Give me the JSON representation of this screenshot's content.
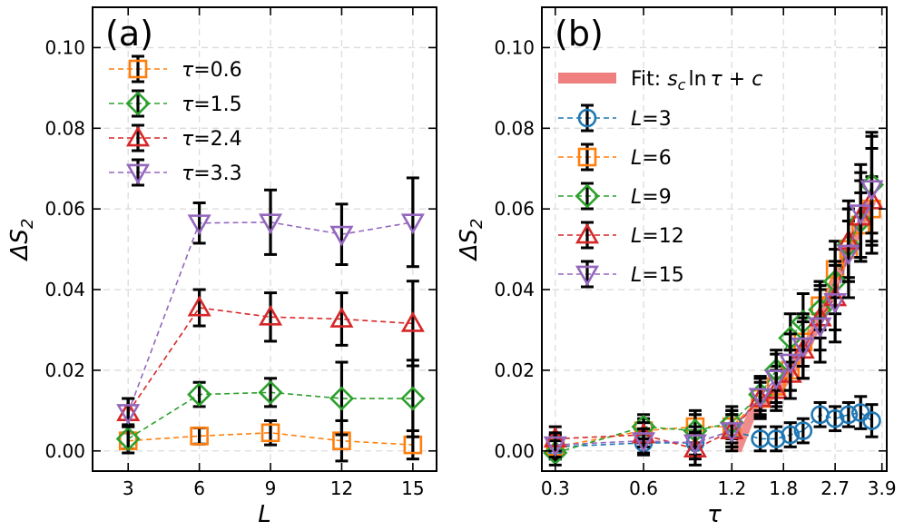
{
  "chart_data": [
    {
      "type": "line",
      "panel_label": "(a)",
      "xlabel": "L",
      "ylabel": "ΔS",
      "ylabel_sub": "2",
      "xlim": [
        1.5,
        16.0
      ],
      "ylim": [
        -0.005,
        0.11
      ],
      "xticks": [
        3,
        6,
        9,
        12,
        15
      ],
      "xtick_labels": [
        "3",
        "6",
        "9",
        "12",
        "15"
      ],
      "yticks": [
        0.0,
        0.02,
        0.04,
        0.06,
        0.08,
        0.1
      ],
      "ytick_labels": [
        "0.00",
        "0.02",
        "0.04",
        "0.06",
        "0.08",
        "0.10"
      ],
      "grid": true,
      "legend_position": "upper-left",
      "series": [
        {
          "name": "τ=0.6",
          "prefix": "τ",
          "value_label": "=0.6",
          "color": "#ff7f0e",
          "marker": "square",
          "x": [
            3,
            6,
            9,
            12,
            15
          ],
          "y": [
            0.0025,
            0.0037,
            0.0045,
            0.0025,
            0.0015
          ],
          "err": [
            0.002,
            0.002,
            0.003,
            0.005,
            0.0035
          ]
        },
        {
          "name": "τ=1.5",
          "prefix": "τ",
          "value_label": "=1.5",
          "color": "#2ca02c",
          "marker": "diamond",
          "x": [
            3,
            6,
            9,
            12,
            15
          ],
          "y": [
            0.003,
            0.014,
            0.0145,
            0.013,
            0.013
          ],
          "err": [
            0.0035,
            0.003,
            0.0035,
            0.009,
            0.0095
          ]
        },
        {
          "name": "τ=2.4",
          "prefix": "τ",
          "value_label": "=2.4",
          "color": "#d62728",
          "marker": "triangle-up",
          "x": [
            3,
            6,
            9,
            12,
            15
          ],
          "y": [
            0.0095,
            0.0355,
            0.0332,
            0.0327,
            0.0316
          ],
          "err": [
            0.0035,
            0.0045,
            0.006,
            0.0065,
            0.0105
          ]
        },
        {
          "name": "τ=3.3",
          "prefix": "τ",
          "value_label": "=3.3",
          "color": "#9467bd",
          "marker": "triangle-down",
          "x": [
            3,
            6,
            9,
            12,
            15
          ],
          "y": [
            0.0095,
            0.0565,
            0.0567,
            0.0537,
            0.0567
          ],
          "err": [
            0.0035,
            0.005,
            0.008,
            0.0075,
            0.011
          ]
        }
      ]
    },
    {
      "type": "line",
      "panel_label": "(b)",
      "xlabel": "τ",
      "ylabel": "ΔS",
      "ylabel_sub": "2",
      "xlim": [
        0.27,
        4.05
      ],
      "ylim": [
        -0.005,
        0.11
      ],
      "xscale": "log",
      "xticks": [
        0.3,
        0.6,
        1.2,
        1.8,
        2.7,
        3.9
      ],
      "xtick_labels": [
        "0.3",
        "0.6",
        "1.2",
        "1.8",
        "2.7",
        "3.9"
      ],
      "yticks": [
        0.0,
        0.02,
        0.04,
        0.06,
        0.08,
        0.1
      ],
      "ytick_labels": [
        "0.00",
        "0.02",
        "0.04",
        "0.06",
        "0.08",
        "0.10"
      ],
      "grid": true,
      "legend_position": "upper-left",
      "fit": {
        "label_prefix": "Fit: ",
        "label_formula": "s",
        "label_sub": "c",
        "label_rest": "ln",
        "label_tau": "τ",
        "label_tail": " + ",
        "label_c": "c",
        "color": "#f08080",
        "x": [
          1.25,
          1.4,
          1.55,
          1.7,
          1.85,
          2.0,
          2.2,
          2.4,
          2.6,
          2.8,
          3.0,
          3.2,
          3.4,
          3.6
        ],
        "y": [
          0.0,
          0.009,
          0.0125,
          0.0145,
          0.018,
          0.022,
          0.027,
          0.033,
          0.039,
          0.045,
          0.05,
          0.054,
          0.058,
          0.062
        ]
      },
      "series": [
        {
          "name": "L=3",
          "prefix": "L",
          "value_label": "=3",
          "color": "#1f77b4",
          "marker": "circle",
          "x": [
            0.3,
            0.6,
            0.9,
            1.2,
            1.5,
            1.7,
            1.9,
            2.1,
            2.4,
            2.7,
            3.0,
            3.3,
            3.6
          ],
          "y": [
            0.001,
            0.002,
            0.002,
            0.005,
            0.003,
            0.003,
            0.004,
            0.005,
            0.009,
            0.008,
            0.009,
            0.0095,
            0.0075
          ],
          "err": [
            0.003,
            0.003,
            0.003,
            0.004,
            0.003,
            0.003,
            0.003,
            0.003,
            0.003,
            0.003,
            0.003,
            0.004,
            0.004
          ]
        },
        {
          "name": "L=6",
          "prefix": "L",
          "value_label": "=6",
          "color": "#ff7f0e",
          "marker": "square",
          "x": [
            0.3,
            0.6,
            0.9,
            1.2,
            1.5,
            1.7,
            1.9,
            2.1,
            2.4,
            2.7,
            3.0,
            3.3,
            3.6
          ],
          "y": [
            0.001,
            0.005,
            0.006,
            0.006,
            0.013,
            0.016,
            0.02,
            0.027,
            0.036,
            0.045,
            0.05,
            0.056,
            0.06
          ],
          "err": [
            0.003,
            0.003,
            0.004,
            0.004,
            0.004,
            0.005,
            0.005,
            0.006,
            0.006,
            0.007,
            0.007,
            0.008,
            0.008
          ]
        },
        {
          "name": "L=9",
          "prefix": "L",
          "value_label": "=9",
          "color": "#2ca02c",
          "marker": "diamond",
          "x": [
            0.3,
            0.6,
            0.9,
            1.2,
            1.5,
            1.7,
            1.9,
            2.1,
            2.4,
            2.7,
            3.0,
            3.3,
            3.6
          ],
          "y": [
            -0.0005,
            0.006,
            0.005,
            0.007,
            0.014,
            0.02,
            0.028,
            0.032,
            0.035,
            0.042,
            0.051,
            0.057,
            0.066
          ],
          "err": [
            0.003,
            0.003,
            0.004,
            0.004,
            0.004,
            0.005,
            0.006,
            0.007,
            0.007,
            0.008,
            0.009,
            0.01,
            0.012
          ]
        },
        {
          "name": "L=12",
          "prefix": "L",
          "value_label": "=12",
          "color": "#d62728",
          "marker": "triangle-up",
          "x": [
            0.3,
            0.6,
            0.9,
            1.2,
            1.5,
            1.7,
            1.9,
            2.1,
            2.4,
            2.7,
            3.0,
            3.3,
            3.6
          ],
          "y": [
            0.003,
            0.004,
            0.0005,
            0.005,
            0.013,
            0.015,
            0.019,
            0.025,
            0.033,
            0.038,
            0.052,
            0.058,
            0.062
          ],
          "err": [
            0.003,
            0.003,
            0.004,
            0.004,
            0.005,
            0.005,
            0.006,
            0.007,
            0.008,
            0.008,
            0.01,
            0.011,
            0.013
          ]
        },
        {
          "name": "L=15",
          "prefix": "L",
          "value_label": "=15",
          "color": "#9467bd",
          "marker": "triangle-down",
          "x": [
            0.3,
            0.6,
            0.9,
            1.2,
            1.5,
            1.7,
            1.9,
            2.1,
            2.4,
            2.7,
            3.0,
            3.3,
            3.6
          ],
          "y": [
            0.0015,
            0.0025,
            0.002,
            0.005,
            0.0135,
            0.018,
            0.022,
            0.026,
            0.031,
            0.037,
            0.049,
            0.059,
            0.065
          ],
          "err": [
            0.003,
            0.003,
            0.004,
            0.005,
            0.005,
            0.006,
            0.007,
            0.008,
            0.009,
            0.01,
            0.011,
            0.012,
            0.014
          ]
        }
      ]
    }
  ]
}
